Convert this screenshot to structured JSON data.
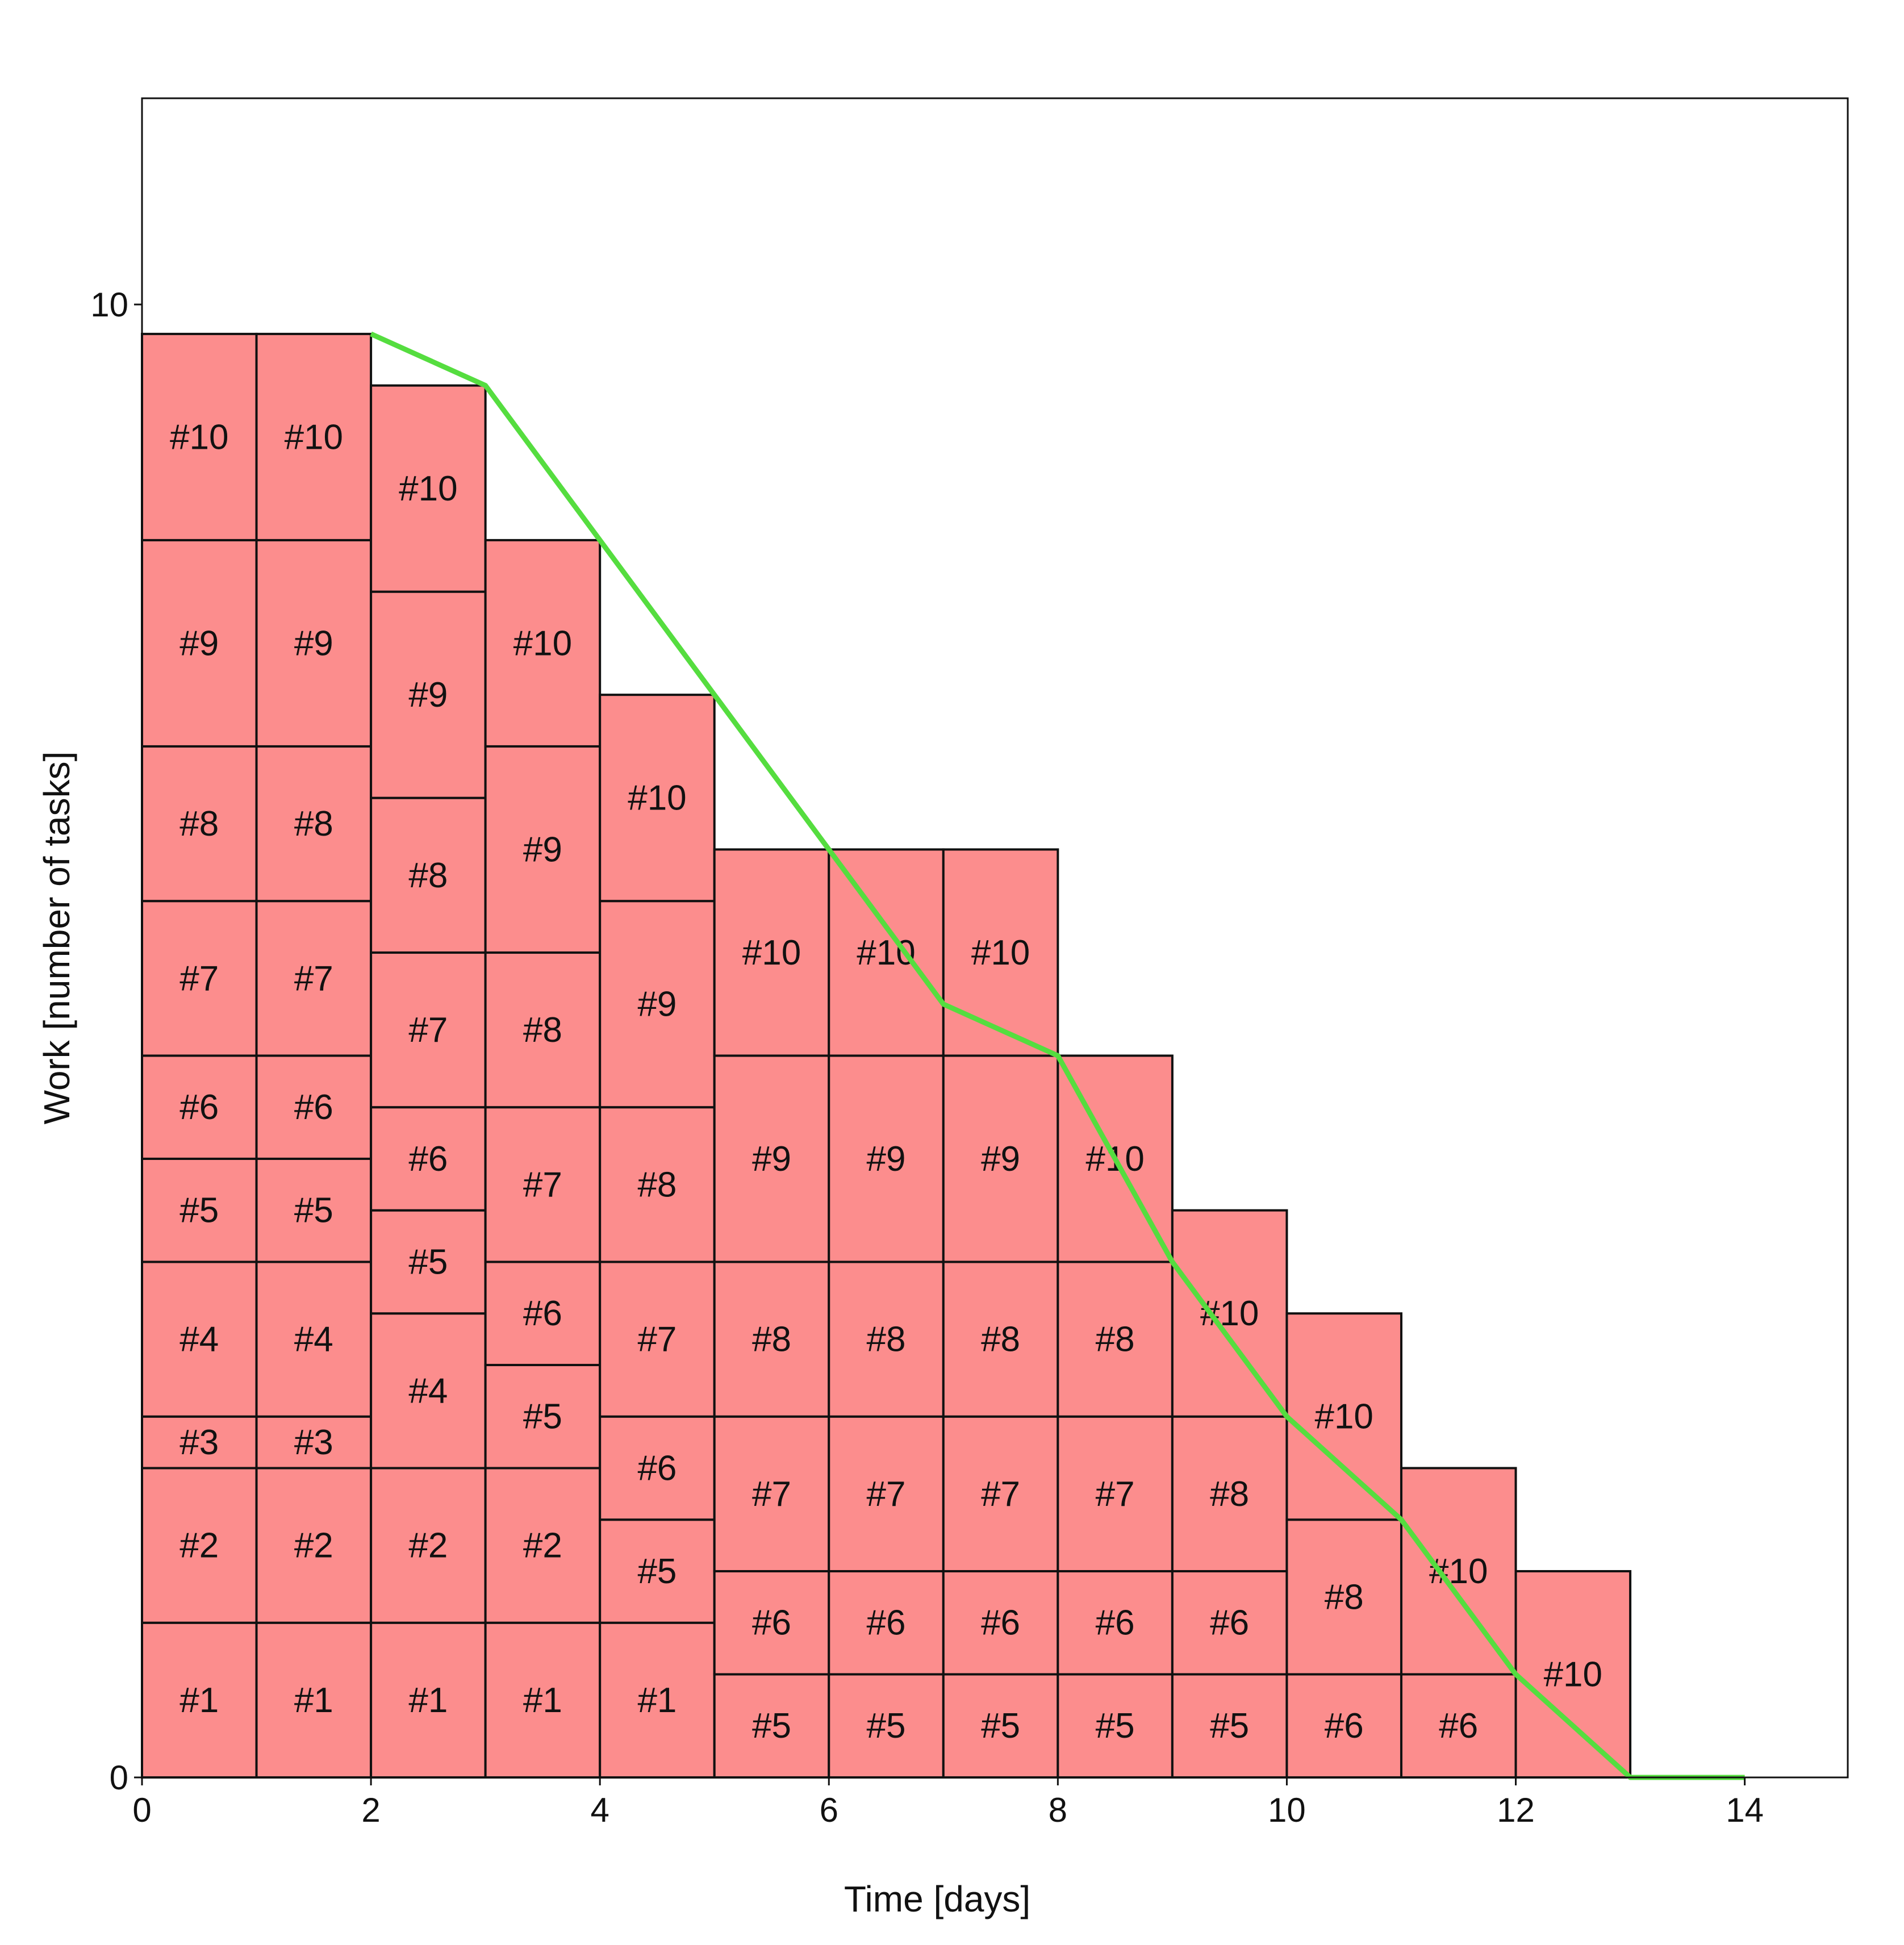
{
  "chart_data": {
    "type": "bar",
    "subtype": "stacked-burndown",
    "title": "",
    "xlabel": "Time [days]",
    "ylabel": "Work [number of tasks]",
    "xlim": [
      0,
      14.9
    ],
    "ylim": [
      0,
      11.4
    ],
    "x_ticks": [
      "0",
      "2",
      "4",
      "6",
      "8",
      "10",
      "12",
      "14"
    ],
    "y_ticks": [
      "0",
      "10"
    ],
    "grid": false,
    "legend": "none",
    "colors": {
      "bar_fill": "#fc8d8d",
      "bar_edge": "#111111",
      "line": "#55dd3f",
      "frame": "#111111"
    },
    "columns": [
      {
        "day": 0,
        "blocks": [
          {
            "label": "#1",
            "height": 1.05
          },
          {
            "label": "#2",
            "height": 1.05
          },
          {
            "label": "#3",
            "height": 0.35
          },
          {
            "label": "#4",
            "height": 1.05
          },
          {
            "label": "#5",
            "height": 0.7
          },
          {
            "label": "#6",
            "height": 0.7
          },
          {
            "label": "#7",
            "height": 1.05
          },
          {
            "label": "#8",
            "height": 1.05
          },
          {
            "label": "#9",
            "height": 1.4
          },
          {
            "label": "#10",
            "height": 1.4
          }
        ]
      },
      {
        "day": 1,
        "blocks": [
          {
            "label": "#1",
            "height": 1.05
          },
          {
            "label": "#2",
            "height": 1.05
          },
          {
            "label": "#3",
            "height": 0.35
          },
          {
            "label": "#4",
            "height": 1.05
          },
          {
            "label": "#5",
            "height": 0.7
          },
          {
            "label": "#6",
            "height": 0.7
          },
          {
            "label": "#7",
            "height": 1.05
          },
          {
            "label": "#8",
            "height": 1.05
          },
          {
            "label": "#9",
            "height": 1.4
          },
          {
            "label": "#10",
            "height": 1.4
          }
        ]
      },
      {
        "day": 2,
        "blocks": [
          {
            "label": "#1",
            "height": 1.05
          },
          {
            "label": "#2",
            "height": 1.05
          },
          {
            "label": "#4",
            "height": 1.05
          },
          {
            "label": "#5",
            "height": 0.7
          },
          {
            "label": "#6",
            "height": 0.7
          },
          {
            "label": "#7",
            "height": 1.05
          },
          {
            "label": "#8",
            "height": 1.05
          },
          {
            "label": "#9",
            "height": 1.4
          },
          {
            "label": "#10",
            "height": 1.4
          }
        ]
      },
      {
        "day": 3,
        "blocks": [
          {
            "label": "#1",
            "height": 1.05
          },
          {
            "label": "#2",
            "height": 1.05
          },
          {
            "label": "#5",
            "height": 0.7
          },
          {
            "label": "#6",
            "height": 0.7
          },
          {
            "label": "#7",
            "height": 1.05
          },
          {
            "label": "#8",
            "height": 1.05
          },
          {
            "label": "#9",
            "height": 1.4
          },
          {
            "label": "#10",
            "height": 1.4
          }
        ]
      },
      {
        "day": 4,
        "blocks": [
          {
            "label": "#1",
            "height": 1.05
          },
          {
            "label": "#5",
            "height": 0.7
          },
          {
            "label": "#6",
            "height": 0.7
          },
          {
            "label": "#7",
            "height": 1.05
          },
          {
            "label": "#8",
            "height": 1.05
          },
          {
            "label": "#9",
            "height": 1.4
          },
          {
            "label": "#10",
            "height": 1.4
          }
        ]
      },
      {
        "day": 5,
        "blocks": [
          {
            "label": "#5",
            "height": 0.7
          },
          {
            "label": "#6",
            "height": 0.7
          },
          {
            "label": "#7",
            "height": 1.05
          },
          {
            "label": "#8",
            "height": 1.05
          },
          {
            "label": "#9",
            "height": 1.4
          },
          {
            "label": "#10",
            "height": 1.4
          }
        ]
      },
      {
        "day": 6,
        "blocks": [
          {
            "label": "#5",
            "height": 0.7
          },
          {
            "label": "#6",
            "height": 0.7
          },
          {
            "label": "#7",
            "height": 1.05
          },
          {
            "label": "#8",
            "height": 1.05
          },
          {
            "label": "#9",
            "height": 1.4
          },
          {
            "label": "#10",
            "height": 1.4
          }
        ]
      },
      {
        "day": 7,
        "blocks": [
          {
            "label": "#5",
            "height": 0.7
          },
          {
            "label": "#6",
            "height": 0.7
          },
          {
            "label": "#7",
            "height": 1.05
          },
          {
            "label": "#8",
            "height": 1.05
          },
          {
            "label": "#9",
            "height": 1.4
          },
          {
            "label": "#10",
            "height": 1.4
          }
        ]
      },
      {
        "day": 8,
        "blocks": [
          {
            "label": "#5",
            "height": 0.7
          },
          {
            "label": "#6",
            "height": 0.7
          },
          {
            "label": "#7",
            "height": 1.05
          },
          {
            "label": "#8",
            "height": 1.05
          },
          {
            "label": "#10",
            "height": 1.4
          }
        ]
      },
      {
        "day": 9,
        "blocks": [
          {
            "label": "#5",
            "height": 0.7
          },
          {
            "label": "#6",
            "height": 0.7
          },
          {
            "label": "#8",
            "height": 1.05
          },
          {
            "label": "#10",
            "height": 1.4
          }
        ]
      },
      {
        "day": 10,
        "blocks": [
          {
            "label": "#6",
            "height": 0.7
          },
          {
            "label": "#8",
            "height": 1.05
          },
          {
            "label": "#10",
            "height": 1.4
          }
        ]
      },
      {
        "day": 11,
        "blocks": [
          {
            "label": "#6",
            "height": 0.7
          },
          {
            "label": "#10",
            "height": 1.4
          }
        ]
      },
      {
        "day": 12,
        "blocks": [
          {
            "label": "#10",
            "height": 1.4
          }
        ]
      }
    ],
    "series": [
      {
        "x": [
          2,
          3,
          4,
          5,
          6,
          7,
          8,
          9,
          10,
          11,
          12,
          13,
          14
        ],
        "y": [
          9.8,
          9.45,
          8.4,
          7.35,
          6.3,
          5.25,
          4.9,
          3.5,
          2.45,
          1.75,
          0.7,
          0,
          0
        ]
      }
    ]
  }
}
